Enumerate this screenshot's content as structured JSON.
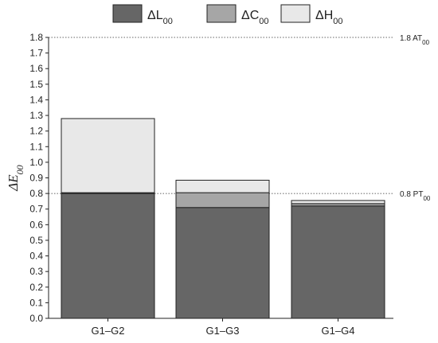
{
  "chart_data": {
    "type": "bar",
    "stacked": true,
    "categories": [
      "G1–G2",
      "G1–G3",
      "G1–G4"
    ],
    "series": [
      {
        "name": "ΔL",
        "subscript": "00",
        "color": "#666666",
        "values": [
          0.8,
          0.71,
          0.72
        ]
      },
      {
        "name": "ΔC",
        "subscript": "00",
        "color": "#a6a6a6",
        "values": [
          0.005,
          0.095,
          0.015
        ]
      },
      {
        "name": "ΔH",
        "subscript": "00",
        "color": "#e8e8e8",
        "values": [
          0.475,
          0.08,
          0.02
        ]
      }
    ],
    "ylabel": "ΔE",
    "ylabel_subscript": "00",
    "ylim": [
      0,
      1.8
    ],
    "ytick_step": 0.1,
    "reference_lines": [
      {
        "value": 1.8,
        "label": "1.8 AT",
        "subscript": "00"
      },
      {
        "value": 0.8,
        "label": "0.8 PT",
        "subscript": "00"
      }
    ],
    "legend_position": "top"
  }
}
